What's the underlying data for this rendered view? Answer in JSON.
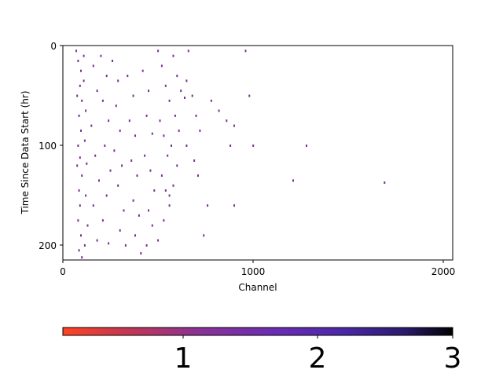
{
  "chart_data": {
    "type": "scatter",
    "xlabel": "Channel",
    "ylabel": "Time Since Data Start (hr)",
    "xlim": [
      0,
      2048
    ],
    "ylim": [
      215,
      0
    ],
    "x_ticks": [
      0,
      1000,
      2000
    ],
    "y_ticks": [
      0,
      100,
      200
    ],
    "x_tick_labels": [
      "0",
      "1000",
      "2000"
    ],
    "y_tick_labels": [
      "0",
      "100",
      "200"
    ],
    "grid": false,
    "legend": "none",
    "marker_color": "#7b3294",
    "colorbar": {
      "orientation": "horizontal",
      "range": [
        0.1,
        3
      ],
      "ticks": [
        1,
        2,
        3
      ],
      "tick_labels": [
        "1",
        "2",
        "3"
      ],
      "colors": [
        "#ff4422",
        "#c8384e",
        "#8a3296",
        "#6a2cb4",
        "#4a28a8",
        "#2a1a6a",
        "#000000"
      ]
    },
    "points": [
      [
        70,
        5
      ],
      [
        80,
        15
      ],
      [
        95,
        25
      ],
      [
        110,
        10
      ],
      [
        90,
        40
      ],
      [
        75,
        50
      ],
      [
        100,
        55
      ],
      [
        85,
        70
      ],
      [
        95,
        85
      ],
      [
        80,
        100
      ],
      [
        90,
        112
      ],
      [
        75,
        120
      ],
      [
        100,
        130
      ],
      [
        85,
        145
      ],
      [
        90,
        160
      ],
      [
        80,
        175
      ],
      [
        95,
        190
      ],
      [
        85,
        205
      ],
      [
        100,
        212
      ],
      [
        110,
        35
      ],
      [
        120,
        65
      ],
      [
        115,
        95
      ],
      [
        125,
        118
      ],
      [
        120,
        150
      ],
      [
        130,
        180
      ],
      [
        115,
        200
      ],
      [
        160,
        20
      ],
      [
        180,
        45
      ],
      [
        150,
        80
      ],
      [
        170,
        110
      ],
      [
        190,
        135
      ],
      [
        160,
        160
      ],
      [
        180,
        195
      ],
      [
        200,
        10
      ],
      [
        230,
        30
      ],
      [
        210,
        55
      ],
      [
        240,
        75
      ],
      [
        220,
        100
      ],
      [
        250,
        125
      ],
      [
        230,
        150
      ],
      [
        210,
        175
      ],
      [
        240,
        198
      ],
      [
        260,
        15
      ],
      [
        290,
        35
      ],
      [
        280,
        60
      ],
      [
        300,
        85
      ],
      [
        270,
        105
      ],
      [
        310,
        120
      ],
      [
        290,
        140
      ],
      [
        320,
        165
      ],
      [
        300,
        185
      ],
      [
        330,
        200
      ],
      [
        340,
        30
      ],
      [
        370,
        50
      ],
      [
        350,
        75
      ],
      [
        380,
        90
      ],
      [
        360,
        115
      ],
      [
        390,
        130
      ],
      [
        370,
        155
      ],
      [
        400,
        170
      ],
      [
        380,
        190
      ],
      [
        410,
        208
      ],
      [
        420,
        25
      ],
      [
        450,
        45
      ],
      [
        440,
        70
      ],
      [
        470,
        88
      ],
      [
        430,
        110
      ],
      [
        460,
        125
      ],
      [
        480,
        145
      ],
      [
        450,
        165
      ],
      [
        470,
        180
      ],
      [
        440,
        200
      ],
      [
        500,
        5
      ],
      [
        520,
        20
      ],
      [
        540,
        40
      ],
      [
        560,
        55
      ],
      [
        510,
        75
      ],
      [
        530,
        90
      ],
      [
        550,
        110
      ],
      [
        520,
        130
      ],
      [
        540,
        145
      ],
      [
        560,
        160
      ],
      [
        530,
        175
      ],
      [
        500,
        195
      ],
      [
        580,
        10
      ],
      [
        600,
        30
      ],
      [
        620,
        45
      ],
      [
        640,
        52
      ],
      [
        590,
        70
      ],
      [
        610,
        85
      ],
      [
        570,
        100
      ],
      [
        600,
        120
      ],
      [
        580,
        140
      ],
      [
        560,
        150
      ],
      [
        660,
        5
      ],
      [
        650,
        35
      ],
      [
        680,
        50
      ],
      [
        700,
        70
      ],
      [
        720,
        85
      ],
      [
        650,
        100
      ],
      [
        690,
        115
      ],
      [
        710,
        130
      ],
      [
        760,
        160
      ],
      [
        740,
        190
      ],
      [
        780,
        55
      ],
      [
        820,
        65
      ],
      [
        860,
        75
      ],
      [
        900,
        80
      ],
      [
        880,
        100
      ],
      [
        900,
        160
      ],
      [
        960,
        5
      ],
      [
        980,
        50
      ],
      [
        1000,
        100
      ],
      [
        1280,
        100
      ],
      [
        1210,
        135
      ],
      [
        1690,
        137
      ]
    ]
  }
}
